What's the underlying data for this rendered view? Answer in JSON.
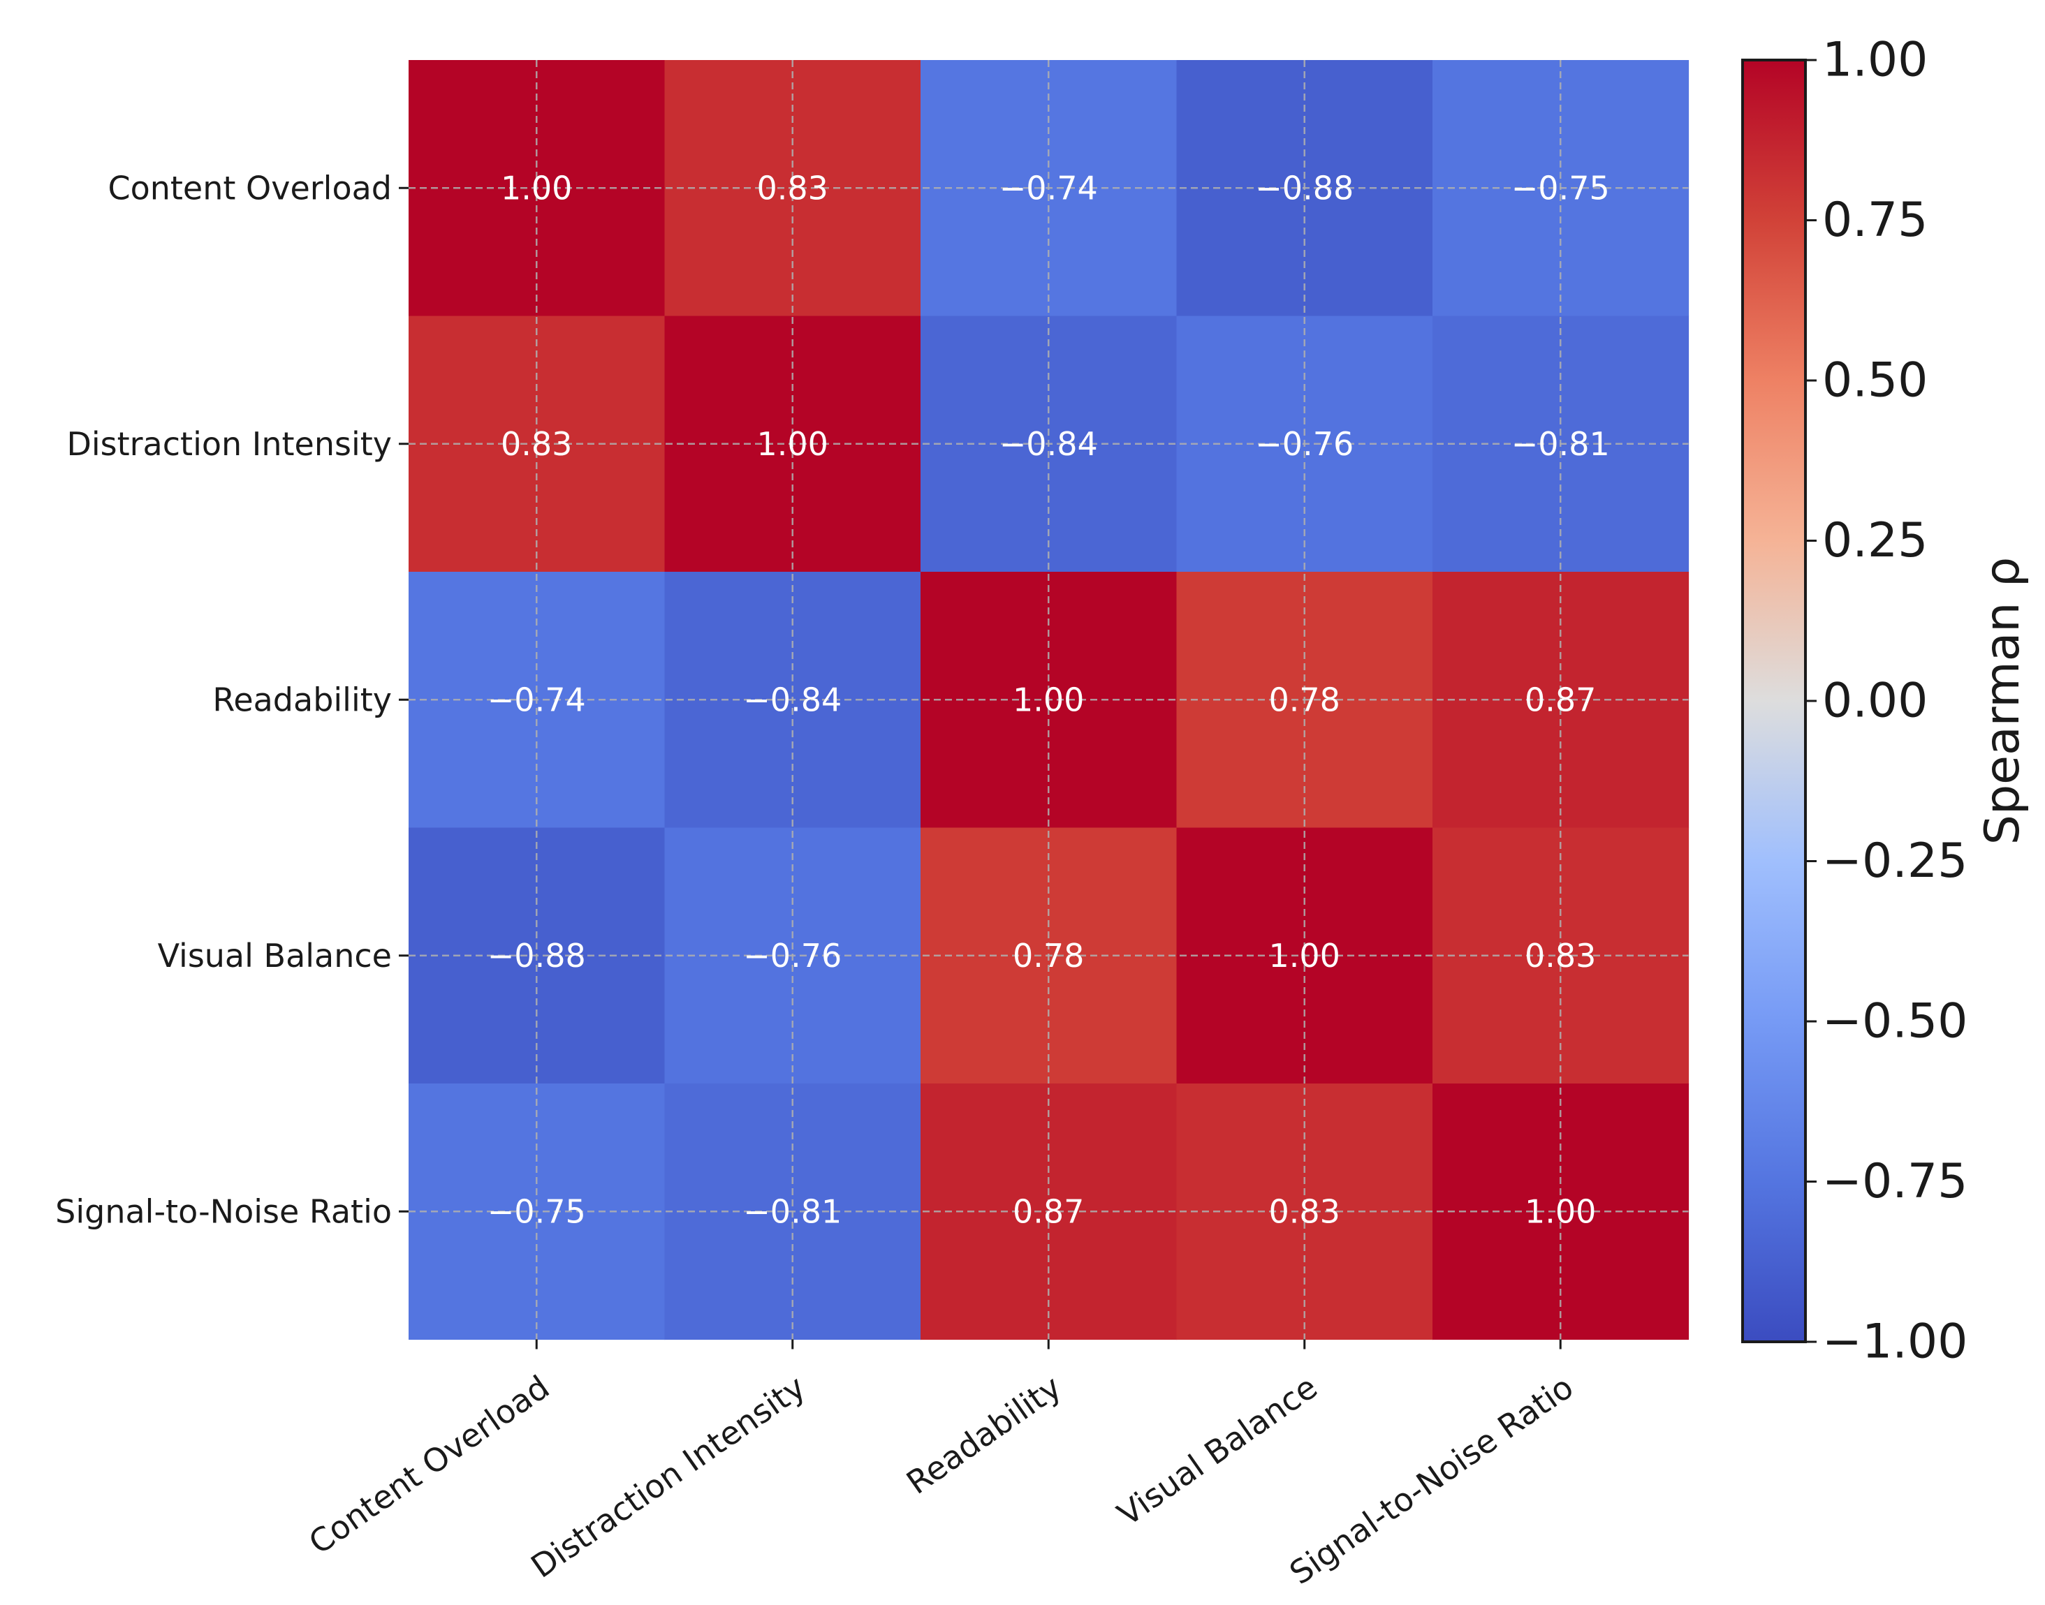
{
  "chart_data": {
    "type": "heatmap",
    "title": "",
    "row_labels": [
      "Content Overload",
      "Distraction Intensity",
      "Readability",
      "Visual Balance",
      "Signal-to-Noise Ratio"
    ],
    "col_labels": [
      "Content Overload",
      "Distraction Intensity",
      "Readability",
      "Visual Balance",
      "Signal-to-Noise Ratio"
    ],
    "values": [
      [
        1.0,
        0.83,
        -0.74,
        -0.88,
        -0.75
      ],
      [
        0.83,
        1.0,
        -0.84,
        -0.76,
        -0.81
      ],
      [
        -0.74,
        -0.84,
        1.0,
        0.78,
        0.87
      ],
      [
        -0.88,
        -0.76,
        0.78,
        1.0,
        0.83
      ],
      [
        -0.75,
        -0.81,
        0.87,
        0.83,
        1.0
      ]
    ],
    "value_format": "2 decimals",
    "colormap": "coolwarm",
    "vmin": -1.0,
    "vmax": 1.0,
    "grid": true,
    "colorbar": {
      "label": "Spearman ρ",
      "ticks": [
        1.0,
        0.75,
        0.5,
        0.25,
        0.0,
        -0.25,
        -0.5,
        -0.75,
        -1.0
      ],
      "tick_labels": [
        "1.00",
        "0.75",
        "0.50",
        "0.25",
        "0.00",
        "−0.25",
        "−0.50",
        "−0.75",
        "−1.00"
      ]
    }
  }
}
